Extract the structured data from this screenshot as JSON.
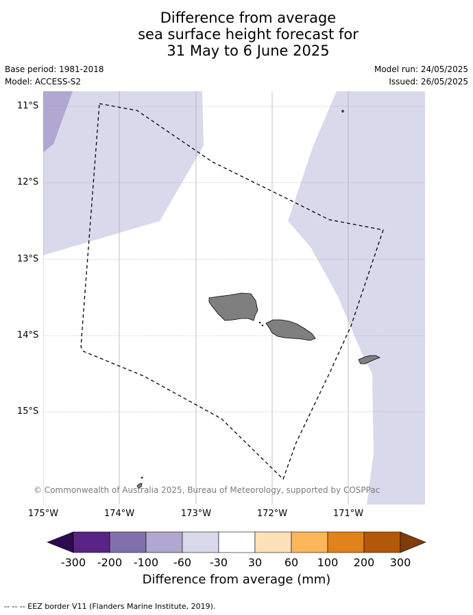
{
  "title": {
    "line1": "Difference from average",
    "line2": "sea surface height forecast for",
    "line3": "31 May to 6 June 2025"
  },
  "meta": {
    "base_period": "Base period: 1981-2018",
    "model": "Model: ACCESS-S2",
    "model_run": "Model run: 24/05/2025",
    "issued": "Issued: 26/05/2025"
  },
  "axes": {
    "lat_ticks": [
      "11°S",
      "12°S",
      "13°S",
      "14°S",
      "15°S"
    ],
    "lon_ticks": [
      "175°W",
      "174°W",
      "173°W",
      "172°W",
      "171°W"
    ]
  },
  "copyright": "© Commonwealth of Australia 2025, Bureau of Meteorology, supported by COSPPac",
  "colorbar": {
    "title": "Difference from average (mm)",
    "labels": [
      "-300",
      "-200",
      "-100",
      "-60",
      "-30",
      "30",
      "60",
      "100",
      "200",
      "300"
    ],
    "colors": [
      "#2d0b4e",
      "#5a2387",
      "#8170ad",
      "#b0a8d0",
      "#d9d9ec",
      "#ffffff",
      "#fde1b8",
      "#fbb65a",
      "#e2821a",
      "#b35806",
      "#7f3b08"
    ]
  },
  "footer": "-- -- -- EEZ border V11 (Flanders Marine Institute, 2019).",
  "colors": {
    "land": "#7f7f7f",
    "grid": "#9a9a9a"
  }
}
